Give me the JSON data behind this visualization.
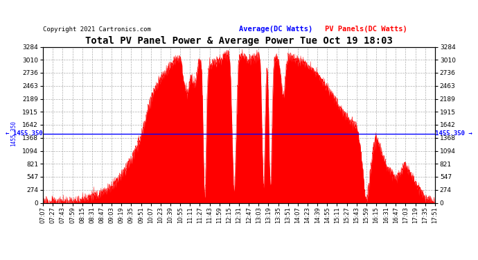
{
  "title": "Total PV Panel Power & Average Power Tue Oct 19 18:03",
  "copyright": "Copyright 2021 Cartronics.com",
  "legend_avg": "Average(DC Watts)",
  "legend_pv": "PV Panels(DC Watts)",
  "avg_value": 1455.35,
  "y_max": 3283.5,
  "y_min": 0.0,
  "y_ticks": [
    0.0,
    273.6,
    547.3,
    820.9,
    1094.5,
    1368.1,
    1641.8,
    1915.4,
    2189.0,
    2462.7,
    2736.3,
    3009.9,
    3283.5
  ],
  "x_tick_labels": [
    "07:07",
    "07:27",
    "07:43",
    "07:59",
    "08:15",
    "08:31",
    "08:47",
    "09:03",
    "09:19",
    "09:35",
    "09:51",
    "10:07",
    "10:23",
    "10:39",
    "10:55",
    "11:11",
    "11:27",
    "11:43",
    "11:59",
    "12:15",
    "12:31",
    "12:47",
    "13:03",
    "13:19",
    "13:35",
    "13:51",
    "14:07",
    "14:23",
    "14:39",
    "14:55",
    "15:11",
    "15:27",
    "15:43",
    "15:59",
    "16:15",
    "16:31",
    "16:47",
    "17:03",
    "17:19",
    "17:35",
    "17:51"
  ],
  "fill_color": "#ff0000",
  "line_color": "#0000ff",
  "bg_color": "#ffffff",
  "grid_color": "#999999",
  "title_color": "#000000",
  "copyright_color": "#000000",
  "legend_avg_color": "#0000ff",
  "legend_pv_color": "#ff0000",
  "avg_label": "1455.350"
}
